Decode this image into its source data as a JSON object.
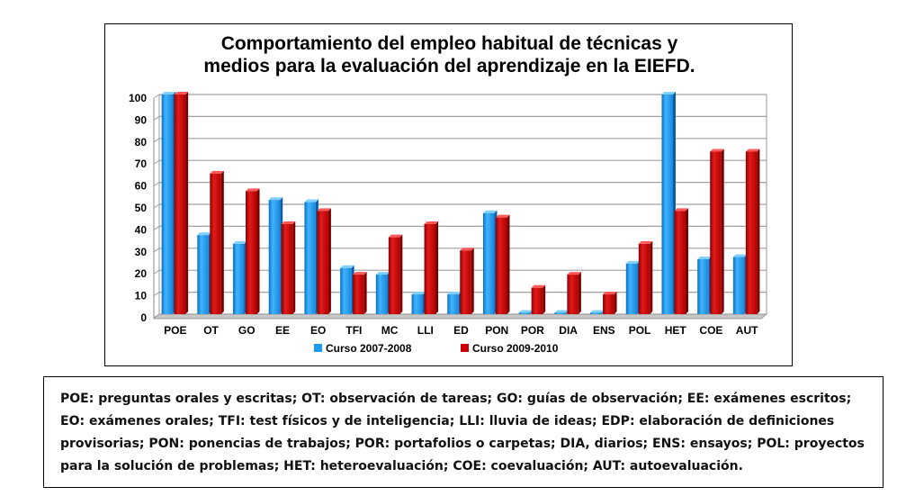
{
  "chart_data": {
    "type": "bar",
    "title_lines": [
      "Comportamiento del empleo habitual de técnicas y",
      "medios para la evaluación del aprendizaje en la EIEFD."
    ],
    "categories": [
      "POE",
      "OT",
      "GO",
      "EE",
      "EO",
      "TFI",
      "MC",
      "LLI",
      "ED",
      "PON",
      "POR",
      "DIA",
      "ENS",
      "POL",
      "HET",
      "COE",
      "AUT"
    ],
    "series": [
      {
        "name": "Curso 2007-2008",
        "color": "#1e9bf0",
        "values": [
          100,
          36,
          32,
          52,
          51,
          21,
          18,
          9,
          9,
          46,
          0,
          0,
          0,
          23,
          100,
          25,
          26
        ]
      },
      {
        "name": "Curso 2009-2010",
        "color": "#cc0000",
        "values": [
          100,
          64,
          56,
          41,
          47,
          18,
          35,
          41,
          29,
          44,
          12,
          18,
          9,
          32,
          47,
          74,
          74
        ]
      }
    ],
    "ylim": [
      0,
      100
    ],
    "yticks": [
      0,
      10,
      20,
      30,
      40,
      50,
      60,
      70,
      80,
      90,
      100
    ],
    "grid": true,
    "legend_position": "bottom"
  },
  "legend_note": "POE: preguntas orales y escritas; OT: observación de tareas; GO: guías de observación; EE: exámenes escritos; EO: exámenes orales; TFI: test físicos y de inteligencia; LLI: lluvia de ideas; EDP: elaboración de definiciones provisorias; PON: ponencias de trabajos; POR: portafolios o carpetas; DIA, diarios; ENS: ensayos; POL: proyectos para la solución de problemas; HET: heteroevaluación; COE: coevaluación; AUT: autoevaluación."
}
